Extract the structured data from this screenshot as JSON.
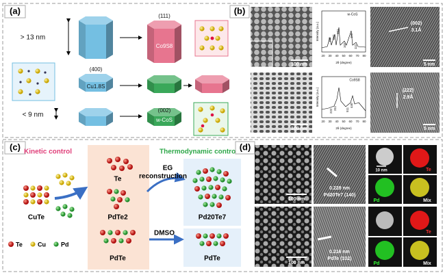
{
  "panel_a": {
    "label": "(a)",
    "large_size": "> 13 nm",
    "small_size": "< 9 nm",
    "top_facet": "(111)",
    "top_phase": "Co9S8",
    "mid_facet": "(400)",
    "mid_phase": "Cu1.8S",
    "bottom_facet": "(002)",
    "bottom_phase": "w-CoS"
  },
  "panel_b": {
    "label": "(b)",
    "y_label": "Intensity (a.u.)",
    "x_label": "2θ (degree)",
    "x_ticks": [
      20,
      30,
      40,
      50,
      60,
      70,
      80
    ],
    "rows": [
      {
        "tem_scale": "100 nm",
        "xrd_title": "w-CoS",
        "peaks": [
          "100",
          "002",
          "101",
          "102",
          "110",
          "112"
        ],
        "facet": "(002)",
        "spacing": "3.1Å",
        "hrtem_scale": "5 nm"
      },
      {
        "tem_scale": "100 nm",
        "xrd_title": "Co9S8",
        "peaks": [
          "222",
          "311",
          "511",
          "440"
        ],
        "facet": "(222)",
        "spacing": "2.9Å",
        "hrtem_scale": "5 nm"
      }
    ]
  },
  "panel_c": {
    "label": "(c)",
    "kinetic": "Kinetic control",
    "thermo": "Thermodynamic control",
    "cute": "CuTe",
    "te": "Te",
    "pdte2": "PdTe2",
    "pdte_mid": "PdTe",
    "eg": "EG",
    "reconstruction": "reconstruction",
    "pd20te7": "Pd20Te7",
    "dmso": "DMSO",
    "pdte_right": "PdTe",
    "legend": [
      "Te",
      "Cu",
      "Pd"
    ]
  },
  "panel_d": {
    "label": "(d)",
    "rows": [
      {
        "sem_scale": "100 nm",
        "spacing": "0.228 nm",
        "plane": "Pd20Te7 (140)",
        "map_scale": "10 nm",
        "maps": [
          "Te",
          "Pd",
          "Mix"
        ]
      },
      {
        "sem_scale": "100 nm",
        "spacing": "0.216 nm",
        "plane": "PdTe (102)",
        "maps": [
          "Te",
          "Pd",
          "Mix"
        ]
      }
    ]
  }
}
